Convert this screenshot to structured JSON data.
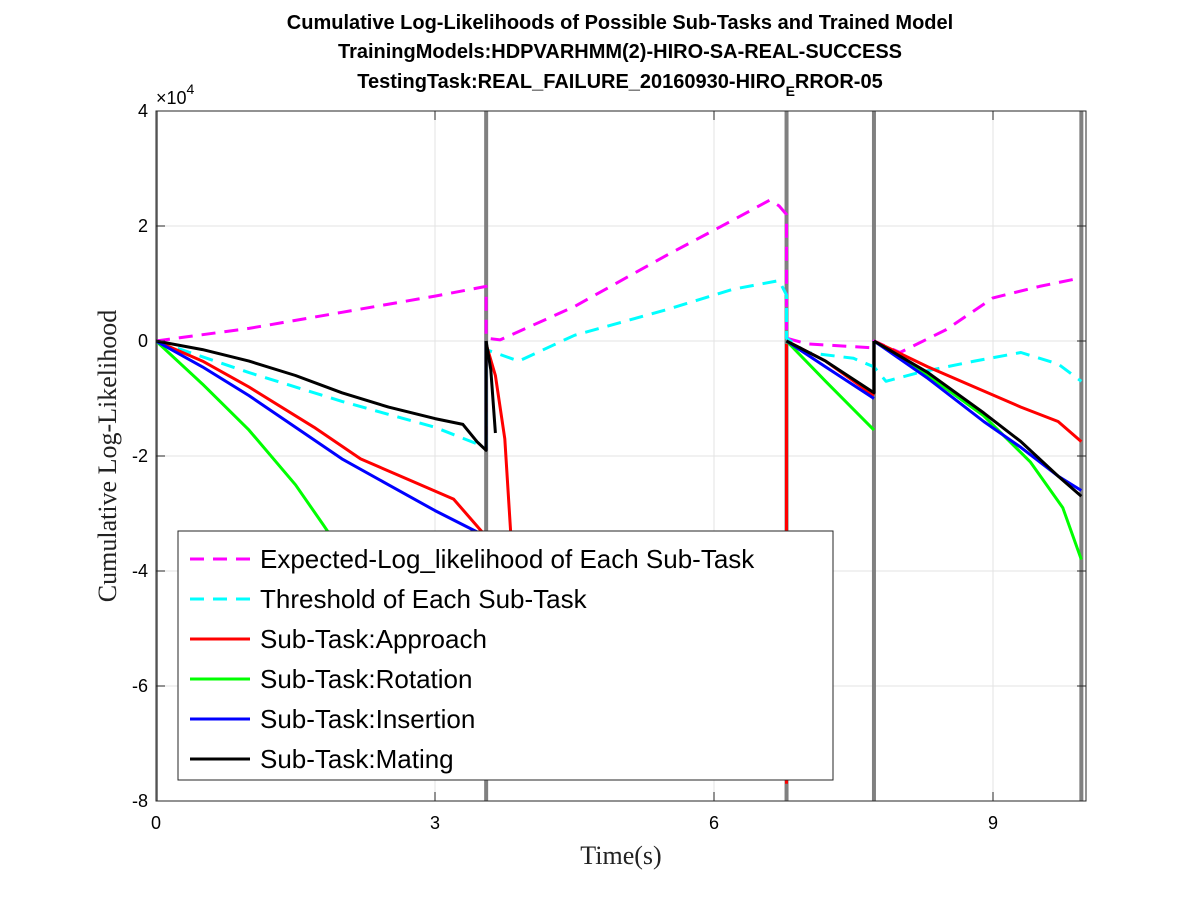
{
  "chart_data": {
    "type": "line",
    "title_lines": [
      "Cumulative Log-Likelihoods of Possible Sub-Tasks and Trained Model",
      "TrainingModels:HDPVARHMM(2)-HIRO-SA-REAL-SUCCESS"
    ],
    "title_line3": {
      "before": "TestingTask:REAL_FAILURE_20160930-HIRO",
      "sub": "E",
      "after": "RROR-05"
    },
    "xlabel": "Time(s)",
    "ylabel": "Cumulative Log-Likelihood",
    "y_exponent": {
      "base": "×10",
      "power": "4"
    },
    "xlim": [
      0,
      10
    ],
    "ylim": [
      -8,
      4
    ],
    "xticks": [
      0,
      3,
      6,
      9
    ],
    "xtick_labels": [
      "0",
      "3",
      "6",
      "9"
    ],
    "yticks": [
      4,
      2,
      0,
      -2,
      -4,
      -6,
      -8
    ],
    "ytick_labels": [
      "4",
      "2",
      "0",
      "-2",
      "-4",
      "-6",
      "-8"
    ],
    "grid": true,
    "legend_position": "bottom-left",
    "boundaries": [
      0,
      3.55,
      6.78,
      7.72,
      9.95
    ],
    "colors": {
      "expected": "#ff00ff",
      "threshold": "#00ffff",
      "approach": "#ff0000",
      "rotation": "#00ff00",
      "insertion": "#0000ff",
      "mating": "#000000",
      "boundary": "#808080"
    },
    "series": [
      {
        "key": "expected",
        "name": "Expected-Log_likelihood of Each Sub-Task",
        "dash": true,
        "segments": [
          [
            [
              0,
              0
            ],
            [
              1,
              0.22
            ],
            [
              2,
              0.5
            ],
            [
              3,
              0.78
            ],
            [
              3.55,
              0.95
            ],
            [
              3.55,
              0.05
            ],
            [
              3.7,
              0.02
            ],
            [
              4.5,
              0.6
            ],
            [
              5.5,
              1.5
            ],
            [
              6.2,
              2.1
            ],
            [
              6.6,
              2.45
            ],
            [
              6.7,
              2.35
            ],
            [
              6.78,
              2.2
            ],
            [
              6.78,
              0.05
            ],
            [
              7,
              -0.05
            ],
            [
              7.72,
              -0.12
            ],
            [
              7.72,
              0
            ],
            [
              8,
              -0.2
            ],
            [
              8.5,
              0.2
            ],
            [
              9,
              0.75
            ],
            [
              9.5,
              0.95
            ],
            [
              9.95,
              1.1
            ]
          ]
        ]
      },
      {
        "key": "threshold",
        "name": "Threshold of Each Sub-Task",
        "dash": true,
        "segments": [
          [
            [
              0,
              0
            ],
            [
              1,
              -0.55
            ],
            [
              2,
              -1.05
            ],
            [
              3,
              -1.5
            ],
            [
              3.55,
              -1.85
            ],
            [
              3.55,
              -0.15
            ],
            [
              3.9,
              -0.35
            ],
            [
              4.5,
              0.1
            ],
            [
              5.5,
              0.55
            ],
            [
              6.2,
              0.9
            ],
            [
              6.7,
              1.05
            ],
            [
              6.78,
              0.8
            ],
            [
              6.78,
              0.05
            ],
            [
              7,
              -0.2
            ],
            [
              7.5,
              -0.3
            ],
            [
              7.72,
              -0.45
            ],
            [
              7.85,
              -0.7
            ],
            [
              8.2,
              -0.55
            ],
            [
              8.8,
              -0.35
            ],
            [
              9.3,
              -0.2
            ],
            [
              9.7,
              -0.4
            ],
            [
              9.95,
              -0.7
            ]
          ]
        ]
      },
      {
        "key": "approach",
        "name": "Sub-Task:Approach",
        "dash": false,
        "segments": [
          [
            [
              0,
              0
            ],
            [
              0.5,
              -0.35
            ],
            [
              1,
              -0.8
            ],
            [
              1.7,
              -1.5
            ],
            [
              2.2,
              -2.05
            ],
            [
              2.7,
              -2.4
            ],
            [
              3.2,
              -2.75
            ],
            [
              3.55,
              -3.4
            ]
          ],
          [
            [
              3.55,
              -0.05
            ],
            [
              3.65,
              -0.6
            ],
            [
              3.75,
              -1.7
            ],
            [
              3.82,
              -3.5
            ],
            [
              3.85,
              -3.85
            ]
          ],
          [
            [
              6.78,
              -0.05
            ],
            [
              6.78,
              -7.7
            ]
          ],
          [
            [
              6.78,
              0
            ],
            [
              7.2,
              -0.35
            ],
            [
              7.72,
              -0.95
            ]
          ],
          [
            [
              7.72,
              0
            ],
            [
              8.3,
              -0.45
            ],
            [
              8.8,
              -0.8
            ],
            [
              9.3,
              -1.15
            ],
            [
              9.7,
              -1.4
            ],
            [
              9.95,
              -1.75
            ]
          ]
        ]
      },
      {
        "key": "rotation",
        "name": "Sub-Task:Rotation",
        "dash": false,
        "segments": [
          [
            [
              0,
              0
            ],
            [
              0.5,
              -0.75
            ],
            [
              1,
              -1.55
            ],
            [
              1.5,
              -2.5
            ],
            [
              1.8,
              -3.2
            ],
            [
              2.05,
              -3.8
            ]
          ],
          [
            [
              6.78,
              0
            ],
            [
              7.2,
              -0.7
            ],
            [
              7.72,
              -1.55
            ]
          ],
          [
            [
              7.72,
              0
            ],
            [
              8.3,
              -0.6
            ],
            [
              8.9,
              -1.3
            ],
            [
              9.4,
              -2.1
            ],
            [
              9.75,
              -2.9
            ],
            [
              9.95,
              -3.8
            ]
          ]
        ]
      },
      {
        "key": "insertion",
        "name": "Sub-Task:Insertion",
        "dash": false,
        "segments": [
          [
            [
              0,
              0
            ],
            [
              0.5,
              -0.45
            ],
            [
              1,
              -0.95
            ],
            [
              1.5,
              -1.5
            ],
            [
              2,
              -2.05
            ],
            [
              2.5,
              -2.5
            ],
            [
              3,
              -2.95
            ],
            [
              3.55,
              -3.4
            ]
          ],
          [
            [
              3.55,
              -1.9
            ],
            [
              3.55,
              0
            ]
          ],
          [
            [
              6.78,
              0
            ],
            [
              7.2,
              -0.45
            ],
            [
              7.72,
              -1.0
            ]
          ],
          [
            [
              7.72,
              0
            ],
            [
              8.3,
              -0.65
            ],
            [
              8.9,
              -1.4
            ],
            [
              9.3,
              -1.85
            ],
            [
              9.7,
              -2.35
            ],
            [
              9.95,
              -2.6
            ]
          ]
        ]
      },
      {
        "key": "mating",
        "name": "Sub-Task:Mating",
        "dash": false,
        "segments": [
          [
            [
              0,
              0
            ],
            [
              0.5,
              -0.15
            ],
            [
              1,
              -0.35
            ],
            [
              1.5,
              -0.6
            ],
            [
              2,
              -0.9
            ],
            [
              2.5,
              -1.15
            ],
            [
              3,
              -1.35
            ],
            [
              3.3,
              -1.45
            ],
            [
              3.45,
              -1.75
            ],
            [
              3.55,
              -1.9
            ],
            [
              3.55,
              0
            ]
          ],
          [
            [
              3.55,
              0
            ],
            [
              3.6,
              -0.5
            ],
            [
              3.65,
              -1.6
            ]
          ],
          [
            [
              6.78,
              0
            ],
            [
              7.2,
              -0.35
            ],
            [
              7.72,
              -0.9
            ],
            [
              7.72,
              0
            ]
          ],
          [
            [
              7.72,
              0
            ],
            [
              8.3,
              -0.55
            ],
            [
              8.9,
              -1.25
            ],
            [
              9.3,
              -1.75
            ],
            [
              9.7,
              -2.35
            ],
            [
              9.95,
              -2.7
            ]
          ]
        ]
      }
    ]
  }
}
